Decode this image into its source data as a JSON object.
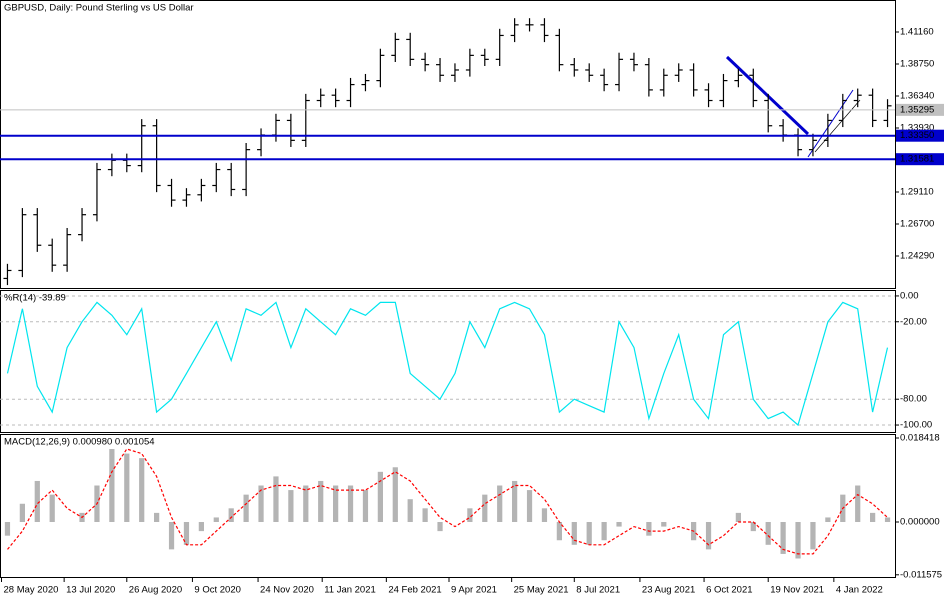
{
  "chart_data": [
    {
      "type": "ohlc",
      "title": "GBPUSD, Daily:  Pound Sterling vs US Dollar",
      "color": "#000000",
      "open": [
        1.226,
        1.232,
        1.274,
        1.251,
        1.236,
        1.259,
        1.274,
        1.308,
        1.315,
        1.311,
        1.341,
        1.296,
        1.285,
        1.289,
        1.296,
        1.308,
        1.293,
        1.323,
        1.334,
        1.345,
        1.33,
        1.36,
        1.364,
        1.36,
        1.372,
        1.375,
        1.394,
        1.406,
        1.391,
        1.387,
        1.379,
        1.383,
        1.394,
        1.391,
        1.409,
        1.417,
        1.417,
        1.409,
        1.387,
        1.383,
        1.379,
        1.372,
        1.391,
        1.387,
        1.368,
        1.379,
        1.383,
        1.368,
        1.36,
        1.375,
        1.379,
        1.36,
        1.341,
        1.334,
        1.323,
        1.33,
        1.345,
        1.36,
        1.364,
        1.345
      ],
      "high": [
        1.237,
        1.279,
        1.279,
        1.256,
        1.264,
        1.279,
        1.313,
        1.32,
        1.32,
        1.346,
        1.346,
        1.301,
        1.294,
        1.301,
        1.313,
        1.313,
        1.328,
        1.339,
        1.35,
        1.35,
        1.365,
        1.369,
        1.369,
        1.377,
        1.38,
        1.399,
        1.411,
        1.411,
        1.396,
        1.392,
        1.388,
        1.399,
        1.399,
        1.414,
        1.422,
        1.422,
        1.422,
        1.414,
        1.392,
        1.388,
        1.384,
        1.396,
        1.396,
        1.392,
        1.384,
        1.388,
        1.388,
        1.373,
        1.38,
        1.384,
        1.384,
        1.365,
        1.346,
        1.339,
        1.335,
        1.35,
        1.365,
        1.369,
        1.369,
        1.361
      ],
      "low": [
        1.221,
        1.227,
        1.246,
        1.231,
        1.231,
        1.254,
        1.269,
        1.303,
        1.306,
        1.306,
        1.291,
        1.28,
        1.28,
        1.284,
        1.291,
        1.288,
        1.288,
        1.318,
        1.329,
        1.325,
        1.325,
        1.355,
        1.355,
        1.355,
        1.367,
        1.37,
        1.389,
        1.386,
        1.382,
        1.374,
        1.374,
        1.378,
        1.386,
        1.386,
        1.404,
        1.412,
        1.404,
        1.382,
        1.378,
        1.374,
        1.367,
        1.367,
        1.382,
        1.363,
        1.363,
        1.374,
        1.363,
        1.355,
        1.355,
        1.37,
        1.355,
        1.336,
        1.329,
        1.318,
        1.318,
        1.325,
        1.34,
        1.355,
        1.34,
        1.34
      ],
      "close": [
        1.232,
        1.274,
        1.251,
        1.236,
        1.259,
        1.274,
        1.308,
        1.315,
        1.311,
        1.341,
        1.296,
        1.285,
        1.289,
        1.296,
        1.308,
        1.293,
        1.323,
        1.334,
        1.345,
        1.33,
        1.36,
        1.364,
        1.36,
        1.372,
        1.375,
        1.394,
        1.406,
        1.391,
        1.387,
        1.379,
        1.383,
        1.394,
        1.391,
        1.409,
        1.417,
        1.417,
        1.409,
        1.387,
        1.383,
        1.379,
        1.372,
        1.391,
        1.387,
        1.368,
        1.379,
        1.383,
        1.368,
        1.36,
        1.375,
        1.379,
        1.36,
        1.341,
        1.334,
        1.323,
        1.33,
        1.345,
        1.36,
        1.364,
        1.345,
        1.356
      ],
      "xlim": [
        -0.5,
        59.5
      ],
      "xticks": [
        {
          "value": -0.4,
          "label": "28 May 2020"
        },
        {
          "value": 3.8,
          "label": "13 Jul 2020"
        },
        {
          "value": 8.0,
          "label": "26 Aug 2020"
        },
        {
          "value": 12.4,
          "label": "9 Oct 2020"
        },
        {
          "value": 16.8,
          "label": "24 Nov 2020"
        },
        {
          "value": 21.1,
          "label": "11 Jan 2021"
        },
        {
          "value": 25.4,
          "label": "24 Feb 2021"
        },
        {
          "value": 29.6,
          "label": "9 Apr 2021"
        },
        {
          "value": 33.8,
          "label": "25 May 2021"
        },
        {
          "value": 38.0,
          "label": "8 Jul 2021"
        },
        {
          "value": 42.4,
          "label": "23 Aug 2021"
        },
        {
          "value": 46.7,
          "label": "6 Oct 2021"
        },
        {
          "value": 51.0,
          "label": "19 Nov 2021"
        },
        {
          "value": 55.4,
          "label": "4 Jan 2022"
        }
      ],
      "ylim": [
        1.2188,
        1.4357
      ],
      "yticks": [
        {
          "value": 1.4116,
          "label": "1.41160"
        },
        {
          "value": 1.3875,
          "label": "1.38750"
        },
        {
          "value": 1.3634,
          "label": "1.36340"
        },
        {
          "value": 1.3393,
          "label": "1.33930"
        },
        {
          "value": 1.2911,
          "label": "1.29110"
        },
        {
          "value": 1.267,
          "label": "1.26700"
        },
        {
          "value": 1.2429,
          "label": "1.24290"
        }
      ],
      "current_price": {
        "value": 1.35295,
        "label": "1.35295",
        "color": "#c0c0c0"
      },
      "levels": [
        {
          "value": 1.3335,
          "label": "1.33350",
          "color": "#0000cc"
        },
        {
          "value": 1.31581,
          "label": "1.31581",
          "color": "#0000cc"
        }
      ]
    },
    {
      "type": "line",
      "title": "%R(14) -39.89",
      "color": "#00e5ee",
      "values": [
        -60,
        -10,
        -70,
        -90,
        -40,
        -20,
        -5,
        -15,
        -30,
        -10,
        -90,
        -80,
        -60,
        -40,
        -20,
        -50,
        -10,
        -15,
        -5,
        -40,
        -10,
        -20,
        -30,
        -10,
        -15,
        -5,
        -5,
        -60,
        -70,
        -80,
        -60,
        -20,
        -40,
        -10,
        -5,
        -10,
        -30,
        -90,
        -80,
        -85,
        -90,
        -20,
        -40,
        -95,
        -60,
        -30,
        -80,
        -95,
        -30,
        -20,
        -80,
        -95,
        -90,
        -100,
        -60,
        -20,
        -5,
        -10,
        -90,
        -40
      ],
      "ylim": [
        -105.4,
        4.6
      ],
      "yticks": [
        {
          "value": 0,
          "label": "0.00"
        },
        {
          "value": -20,
          "label": "-20.00"
        },
        {
          "value": -80,
          "label": "-80.00"
        },
        {
          "value": -100,
          "label": "-100.00"
        }
      ]
    },
    {
      "type": "macd",
      "title": "MACD(12,26,9) 0.000980 0.001054",
      "histogram": {
        "color": "#b4b4b4",
        "values": [
          -0.003,
          0.004,
          0.009,
          0.006,
          0.0,
          0.002,
          0.008,
          0.016,
          0.015,
          0.014,
          0.002,
          -0.006,
          -0.005,
          -0.002,
          0.001,
          0.003,
          0.006,
          0.008,
          0.01,
          0.007,
          0.008,
          0.009,
          0.008,
          0.008,
          0.007,
          0.011,
          0.012,
          0.005,
          0.003,
          -0.002,
          0.0,
          0.003,
          0.006,
          0.008,
          0.009,
          0.007,
          0.003,
          -0.004,
          -0.005,
          -0.005,
          -0.004,
          -0.001,
          0.0,
          -0.003,
          -0.001,
          0.0,
          -0.004,
          -0.006,
          0.0,
          0.002,
          -0.002,
          -0.005,
          -0.007,
          -0.008,
          -0.006,
          0.001,
          0.006,
          0.008,
          0.002,
          0.001
        ]
      },
      "signal": {
        "color": "#ff0000",
        "values": [
          -0.006,
          -0.002,
          0.004,
          0.007,
          0.003,
          0.001,
          0.004,
          0.011,
          0.016,
          0.015,
          0.01,
          0.001,
          -0.005,
          -0.005,
          -0.002,
          0.001,
          0.004,
          0.007,
          0.008,
          0.008,
          0.007,
          0.008,
          0.007,
          0.007,
          0.007,
          0.009,
          0.011,
          0.009,
          0.005,
          0.001,
          -0.001,
          0.001,
          0.004,
          0.006,
          0.008,
          0.008,
          0.005,
          0.0,
          -0.004,
          -0.005,
          -0.005,
          -0.003,
          -0.001,
          -0.002,
          -0.002,
          -0.001,
          -0.002,
          -0.005,
          -0.003,
          0.0,
          0.0,
          -0.003,
          -0.006,
          -0.007,
          -0.007,
          -0.003,
          0.003,
          0.006,
          0.004,
          0.001
        ]
      },
      "ylim": [
        -0.012277,
        0.019295
      ],
      "yticks": [
        {
          "value": 0.018418,
          "label": "0.018418"
        },
        {
          "value": 0,
          "label": "0.000000"
        },
        {
          "value": -0.011575,
          "label": "-0.011575"
        }
      ]
    }
  ]
}
